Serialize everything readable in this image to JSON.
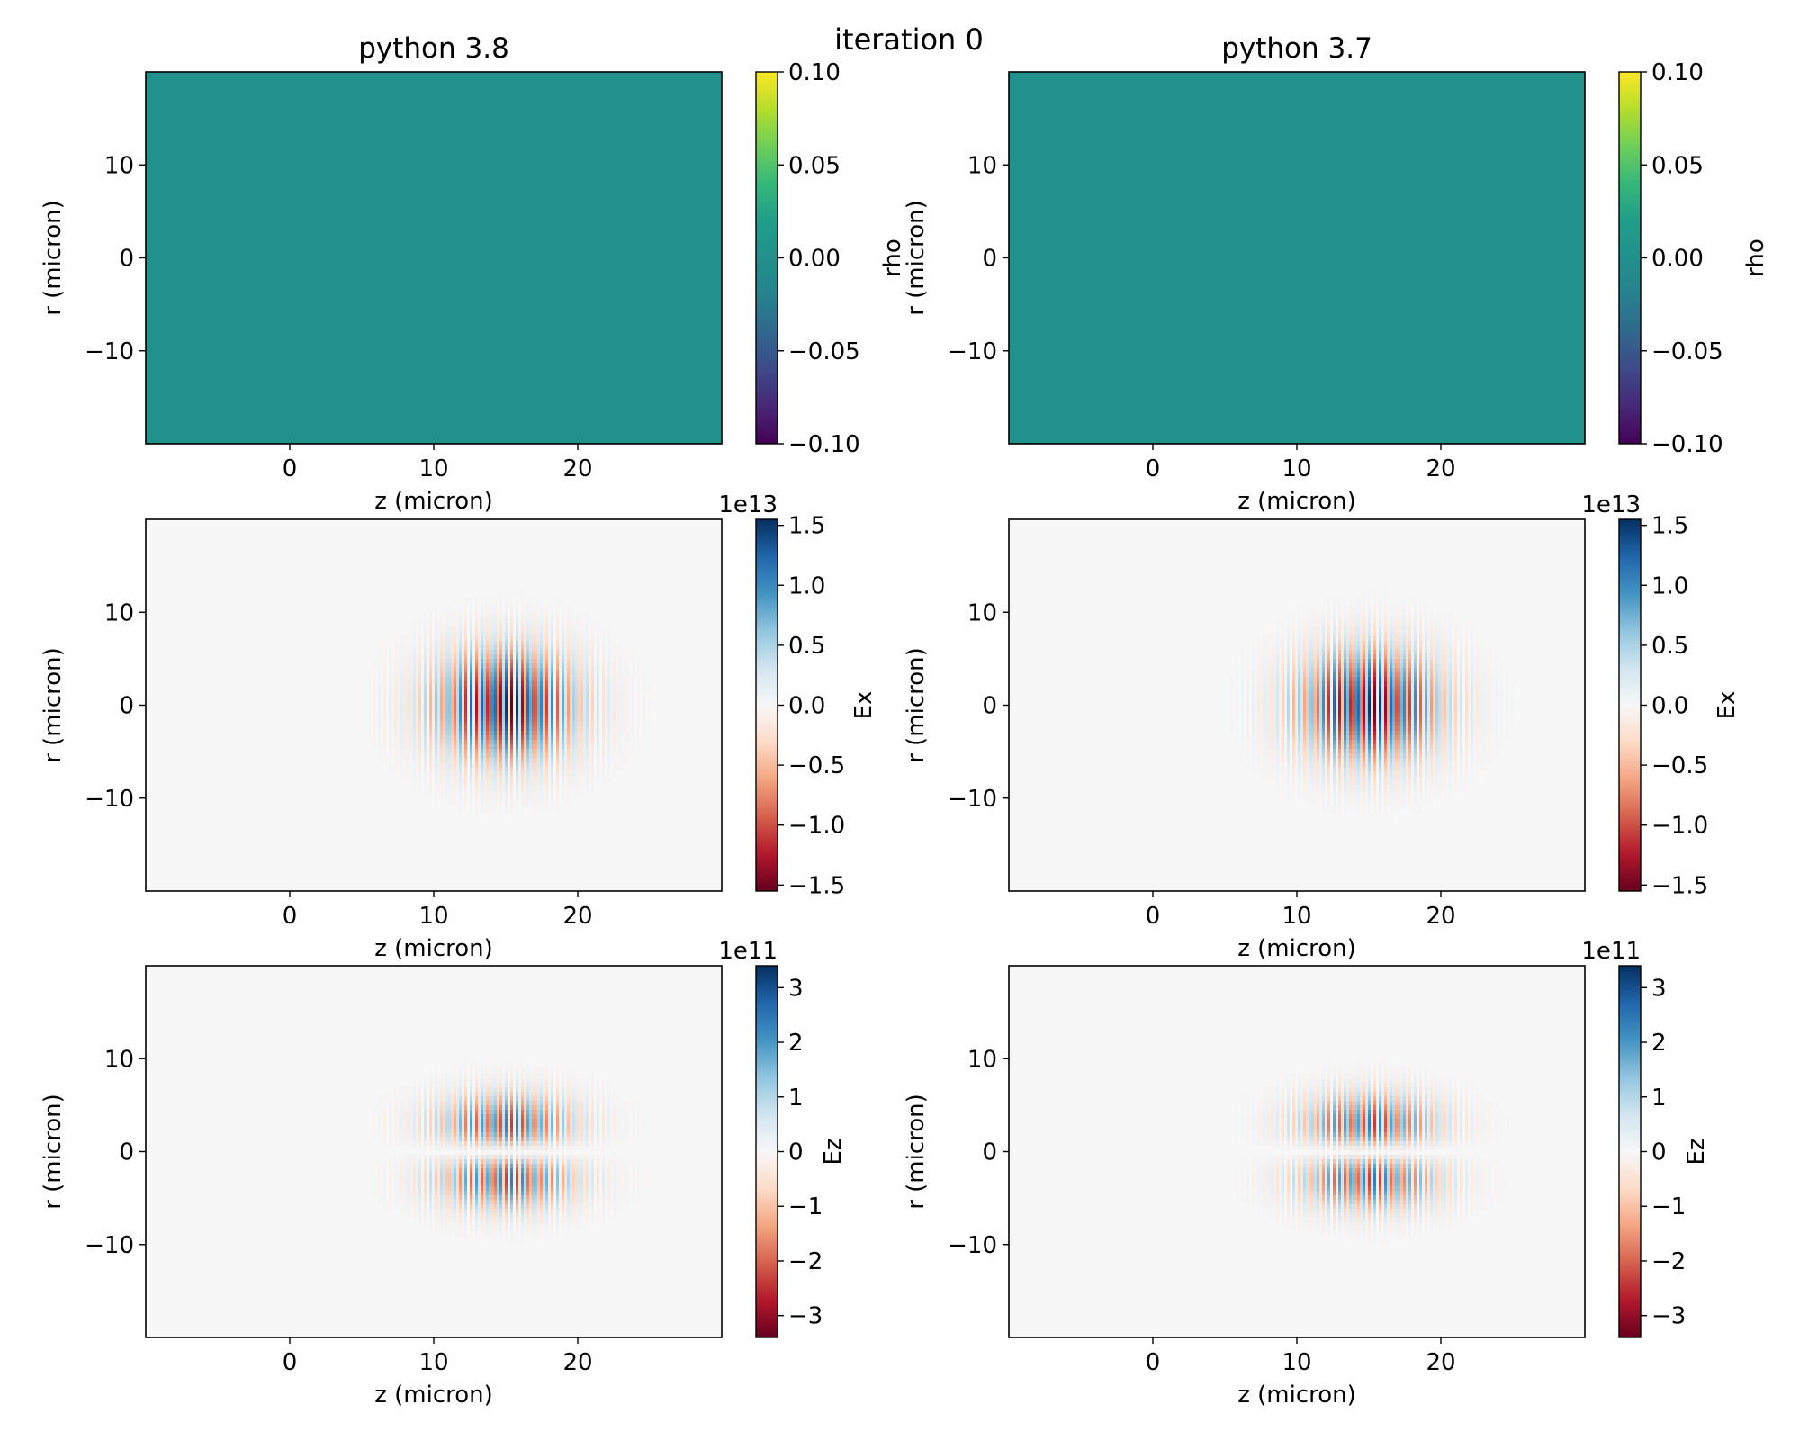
{
  "figure": {
    "suptitle": "iteration 0",
    "columns": [
      "python 3.8",
      "python 3.7"
    ]
  },
  "chart_data": [
    {
      "type": "heatmap",
      "row": 0,
      "col": 0,
      "field": "rho",
      "title": "python 3.8",
      "xlabel": "z (micron)",
      "ylabel": "r (micron)",
      "xlim": [
        -10,
        30
      ],
      "ylim": [
        -20,
        20
      ],
      "xticks": [
        "0",
        "10",
        "20"
      ],
      "yticks": [
        "−10",
        "0",
        "10"
      ],
      "colormap": "viridis",
      "colorbar_label": "rho",
      "colorbar_offset": "",
      "clim": [
        -0.1,
        0.1
      ],
      "colorbar_ticks": [
        "−0.10",
        "−0.05",
        "0.00",
        "0.05",
        "0.10"
      ],
      "field_value": 0.0
    },
    {
      "type": "heatmap",
      "row": 0,
      "col": 1,
      "field": "rho",
      "title": "python 3.7",
      "xlabel": "z (micron)",
      "ylabel": "r (micron)",
      "xlim": [
        -10,
        30
      ],
      "ylim": [
        -20,
        20
      ],
      "xticks": [
        "0",
        "10",
        "20"
      ],
      "yticks": [
        "−10",
        "0",
        "10"
      ],
      "colormap": "viridis",
      "colorbar_label": "rho",
      "colorbar_offset": "",
      "clim": [
        -0.1,
        0.1
      ],
      "colorbar_ticks": [
        "−0.10",
        "−0.05",
        "0.00",
        "0.05",
        "0.10"
      ],
      "field_value": 0.0
    },
    {
      "type": "heatmap",
      "row": 1,
      "col": 0,
      "field": "Ex",
      "title": "",
      "xlabel": "z (micron)",
      "ylabel": "r (micron)",
      "xlim": [
        -10,
        30
      ],
      "ylim": [
        -20,
        20
      ],
      "xticks": [
        "0",
        "10",
        "20"
      ],
      "yticks": [
        "−10",
        "0",
        "10"
      ],
      "colormap": "RdBu",
      "colorbar_label": "Ex",
      "colorbar_offset": "1e13",
      "clim": [
        -1.55,
        1.55
      ],
      "colorbar_ticks": [
        "−1.5",
        "−1.0",
        "−0.5",
        "0.0",
        "0.5",
        "1.0",
        "1.5"
      ],
      "pulse": {
        "center_z": 15,
        "center_r": 0,
        "length_z": 5,
        "waist_r": 6,
        "wavelength": 0.8,
        "amplitude": 1.55,
        "mode": "transverse"
      }
    },
    {
      "type": "heatmap",
      "row": 1,
      "col": 1,
      "field": "Ex",
      "title": "",
      "xlabel": "z (micron)",
      "ylabel": "r (micron)",
      "xlim": [
        -10,
        30
      ],
      "ylim": [
        -20,
        20
      ],
      "xticks": [
        "0",
        "10",
        "20"
      ],
      "yticks": [
        "−10",
        "0",
        "10"
      ],
      "colormap": "RdBu",
      "colorbar_label": "Ex",
      "colorbar_offset": "1e13",
      "clim": [
        -1.55,
        1.55
      ],
      "colorbar_ticks": [
        "−1.5",
        "−1.0",
        "−0.5",
        "0.0",
        "0.5",
        "1.0",
        "1.5"
      ],
      "pulse": {
        "center_z": 15,
        "center_r": 0,
        "length_z": 5,
        "waist_r": 6,
        "wavelength": 0.8,
        "amplitude": 1.55,
        "mode": "transverse"
      }
    },
    {
      "type": "heatmap",
      "row": 2,
      "col": 0,
      "field": "Ez",
      "title": "",
      "xlabel": "z (micron)",
      "ylabel": "r (micron)",
      "xlim": [
        -10,
        30
      ],
      "ylim": [
        -20,
        20
      ],
      "xticks": [
        "0",
        "10",
        "20"
      ],
      "yticks": [
        "−10",
        "0",
        "10"
      ],
      "colormap": "RdBu",
      "colorbar_label": "Ez",
      "colorbar_offset": "1e11",
      "clim": [
        -3.4,
        3.4
      ],
      "colorbar_ticks": [
        "−3",
        "−2",
        "−1",
        "0",
        "1",
        "2",
        "3"
      ],
      "pulse": {
        "center_z": 15,
        "center_r": 0,
        "length_z": 5,
        "waist_r": 6,
        "wavelength": 0.8,
        "amplitude": 3.4,
        "mode": "longitudinal"
      }
    },
    {
      "type": "heatmap",
      "row": 2,
      "col": 1,
      "field": "Ez",
      "title": "",
      "xlabel": "z (micron)",
      "ylabel": "r (micron)",
      "xlim": [
        -10,
        30
      ],
      "ylim": [
        -20,
        20
      ],
      "xticks": [
        "0",
        "10",
        "20"
      ],
      "yticks": [
        "−10",
        "0",
        "10"
      ],
      "colormap": "RdBu",
      "colorbar_label": "Ez",
      "colorbar_offset": "1e11",
      "clim": [
        -3.4,
        3.4
      ],
      "colorbar_ticks": [
        "−3",
        "−2",
        "−1",
        "0",
        "1",
        "2",
        "3"
      ],
      "pulse": {
        "center_z": 15,
        "center_r": 0,
        "length_z": 5,
        "waist_r": 6,
        "wavelength": 0.8,
        "amplitude": 3.4,
        "mode": "longitudinal"
      }
    }
  ]
}
